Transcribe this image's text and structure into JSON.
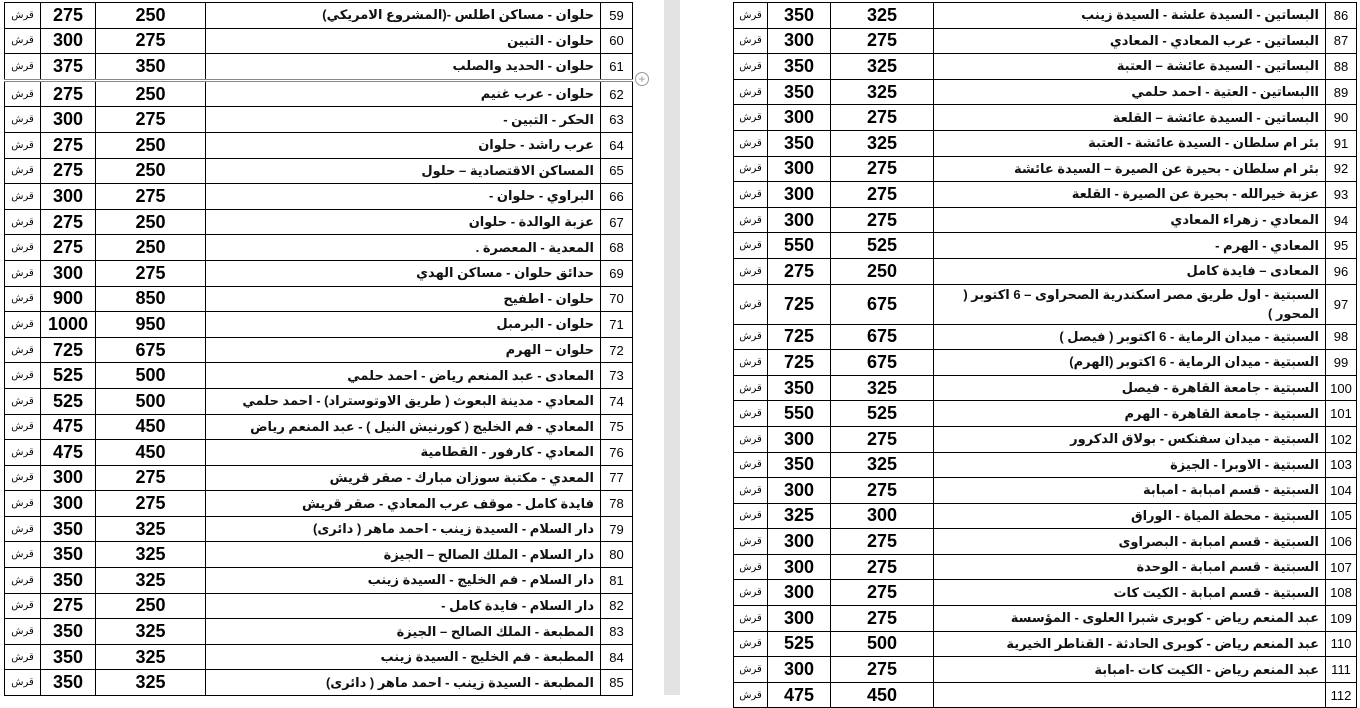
{
  "colors": {
    "gap": "#e3e3e3",
    "border": "#000000"
  },
  "left_table": {
    "rows": [
      [
        "59",
        "حلوان - مساكن اطلس -(المشروع الامريكي)",
        "250",
        "275",
        "قرش"
      ],
      [
        "60",
        "حلوان - التبين",
        "275",
        "300",
        "قرش"
      ],
      [
        "61",
        "حلوان - الحديد والصلب",
        "350",
        "375",
        "قرش"
      ],
      [
        "62",
        "حلوان - عرب غنيم",
        "250",
        "275",
        "قرش"
      ],
      [
        "63",
        "الحكر - التبين -",
        "275",
        "300",
        "قرش"
      ],
      [
        "64",
        "عرب راشد - حلوان",
        "250",
        "275",
        "قرش"
      ],
      [
        "65",
        "المساكن الاقتصادية – حلول",
        "250",
        "275",
        "قرش"
      ],
      [
        "66",
        "البراوي - حلوان -",
        "275",
        "300",
        "قرش"
      ],
      [
        "67",
        "عزبة الوالدة - حلوان",
        "250",
        "275",
        "قرش"
      ],
      [
        "68",
        "المعدية - المعصرة .",
        "250",
        "275",
        "قرش"
      ],
      [
        "69",
        "حدائق حلوان - مساكن الهدي",
        "275",
        "300",
        "قرش"
      ],
      [
        "70",
        "حلوان - اطفيح",
        "850",
        "900",
        "قرش"
      ],
      [
        "71",
        "حلوان - البرمبل",
        "950",
        "1000",
        "قرش"
      ],
      [
        "72",
        "حلوان – الهرم",
        "675",
        "725",
        "قرش"
      ],
      [
        "73",
        "المعادى - عبد المنعم رياض - احمد حلمي",
        "500",
        "525",
        "قرش"
      ],
      [
        "74",
        "المعادي - مدينة البعوث ( طريق الاوتوستراد) - احمد حلمي",
        "500",
        "525",
        "قرش"
      ],
      [
        "75",
        "المعادي - فم الخليج ( كورنيش النيل ) - عبد المنعم رياض",
        "450",
        "475",
        "قرش"
      ],
      [
        "76",
        "المعادي - كارفور - القطامية",
        "450",
        "475",
        "قرش"
      ],
      [
        "77",
        "المعدي - مكتبة سوزان مبارك - صقر قريش",
        "275",
        "300",
        "قرش"
      ],
      [
        "78",
        "فايدة كامل - موقف عرب المعادي - صقر قريش",
        "275",
        "300",
        "قرش"
      ],
      [
        "79",
        "دار السلام - السيدة زينب - احمد ماهر ( دائرى)",
        "325",
        "350",
        "قرش"
      ],
      [
        "80",
        "دار السلام - الملك الصالح – الجيزة",
        "325",
        "350",
        "قرش"
      ],
      [
        "81",
        "دار السلام - فم الخليج - السيدة زينب",
        "325",
        "350",
        "قرش"
      ],
      [
        "82",
        "دار السلام - فايدة كامل -",
        "250",
        "275",
        "قرش"
      ],
      [
        "83",
        "المطبعة - الملك الصالح – الجيزة",
        "325",
        "350",
        "قرش"
      ],
      [
        "84",
        "المطبعة - فم الخليج - السيدة زينب",
        "325",
        "350",
        "قرش"
      ],
      [
        "85",
        "المطبعة - السيدة زينب - احمد ماهر ( دائرى)",
        "325",
        "350",
        "قرش"
      ]
    ]
  },
  "right_table": {
    "rows": [
      [
        "86",
        "البساتين - السيدة علشة - السيدة زينب",
        "325",
        "350",
        "قرش"
      ],
      [
        "87",
        "البساتين - عرب المعادي - المعادي",
        "275",
        "300",
        "قرش"
      ],
      [
        "88",
        "البساتين - السيدة عائشة – العتبة",
        "325",
        "350",
        "قرش"
      ],
      [
        "89",
        "االبساتين - العتية - احمد حلمي",
        "325",
        "350",
        "قرش"
      ],
      [
        "90",
        "البساتين - السيدة عائشة – القلعة",
        "275",
        "300",
        "قرش"
      ],
      [
        "91",
        "بئر ام سلطان - السيدة عائشة - العتبة",
        "325",
        "350",
        "قرش"
      ],
      [
        "92",
        "بئر ام سلطان - بحيرة عن الصيرة – السيدة عائشة",
        "275",
        "300",
        "قرش"
      ],
      [
        "93",
        "عزبة خيرالله - بحيرة عن الصيرة - القلعة",
        "275",
        "300",
        "قرش"
      ],
      [
        "94",
        "المعادي - زهراء المعادي",
        "275",
        "300",
        "قرش"
      ],
      [
        "95",
        "المعادي - الهرم -",
        "525",
        "550",
        "قرش"
      ],
      [
        "96",
        "المعادى – فايدة كامل",
        "250",
        "275",
        "قرش"
      ],
      [
        "97",
        "السبتية - اول طريق مصر اسكندرية الصحراوى – 6 اكتوبر ( المحور )",
        "675",
        "725",
        "قرش"
      ],
      [
        "98",
        "السبتية - ميدان الرماية - 6 اكتوبر ( فيصل )",
        "675",
        "725",
        "قرش"
      ],
      [
        "99",
        "السبتية - ميدان الرماية - 6 اكتوبر (الهرم)",
        "675",
        "725",
        "قرش"
      ],
      [
        "100",
        "السبتية - جامعة القاهرة - فيصل",
        "325",
        "350",
        "قرش"
      ],
      [
        "101",
        "السبتية - جامعة القاهرة - الهرم",
        "525",
        "550",
        "قرش"
      ],
      [
        "102",
        "السبتية - ميدان سفنكس - بولاق الدكرور",
        "275",
        "300",
        "قرش"
      ],
      [
        "103",
        "السبتية - الاوبرا - الجيزة",
        "325",
        "350",
        "قرش"
      ],
      [
        "104",
        "السبتية - قسم امبابة - امبابة",
        "275",
        "300",
        "قرش"
      ],
      [
        "105",
        "السبتية - محطة المياة - الوراق",
        "300",
        "325",
        "قرش"
      ],
      [
        "106",
        "السبتية - قسم امبابة - البصراوى",
        "275",
        "300",
        "قرش"
      ],
      [
        "107",
        "السبتية - قسم امبابة - الوحدة",
        "275",
        "300",
        "قرش"
      ],
      [
        "108",
        "السبتية - قسم امبابة - الكيت كات",
        "275",
        "300",
        "قرش"
      ],
      [
        "109",
        "عبد المنعم رياض - كوبرى شبرا العلوى - المؤسسة",
        "275",
        "300",
        "قرش"
      ],
      [
        "110",
        "عبد المنعم رياض - كوبرى الحادثة - القناطر الخيرية",
        "500",
        "525",
        "قرش"
      ],
      [
        "111",
        "عبد المنعم رياض - الكيت كات -امبابة",
        "275",
        "300",
        "قرش"
      ],
      [
        "112",
        "",
        "450",
        "475",
        "قرش"
      ]
    ]
  }
}
